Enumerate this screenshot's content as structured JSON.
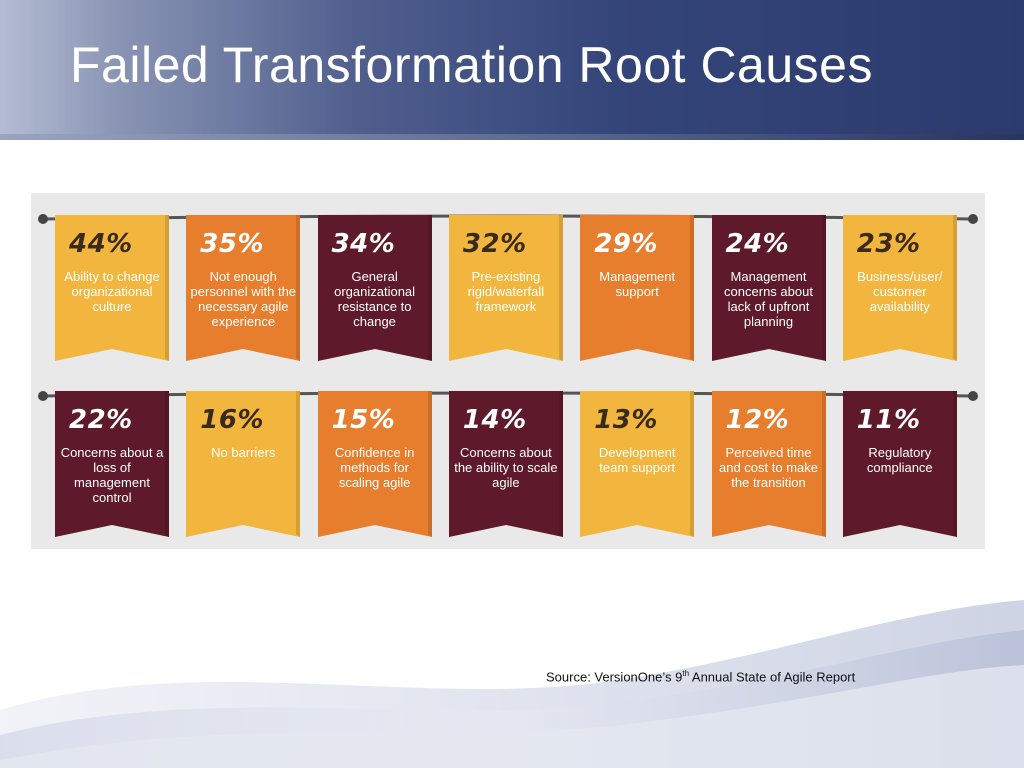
{
  "title": "Failed Transformation Root Causes",
  "source": {
    "prefix": "Source: VersionOne’s 9",
    "superscript": "th",
    "suffix": " Annual State of Agile Report"
  },
  "colors": {
    "yellow": "#f2b63f",
    "orange": "#e67e2e",
    "dark": "#5e1a2a",
    "panel": "#e9e9e9",
    "rope": "#555555"
  },
  "rows": [
    [
      {
        "percent": "44%",
        "label": "Ability to change organizational culture",
        "color": "yellow"
      },
      {
        "percent": "35%",
        "label": "Not enough personnel with the necessary agile experience",
        "color": "orange"
      },
      {
        "percent": "34%",
        "label": "General organizational resistance to change",
        "color": "dark"
      },
      {
        "percent": "32%",
        "label": "Pre-existing rigid/waterfall framework",
        "color": "yellow"
      },
      {
        "percent": "29%",
        "label": "Management support",
        "color": "orange"
      },
      {
        "percent": "24%",
        "label": "Management concerns about lack of upfront planning",
        "color": "dark"
      },
      {
        "percent": "23%",
        "label": "Business/user/ customer availability",
        "color": "yellow"
      }
    ],
    [
      {
        "percent": "22%",
        "label": "Concerns about a loss of management control",
        "color": "dark"
      },
      {
        "percent": "16%",
        "label": "No barriers",
        "color": "yellow"
      },
      {
        "percent": "15%",
        "label": "Confidence in methods for scaling agile",
        "color": "orange"
      },
      {
        "percent": "14%",
        "label": "Concerns about the ability to scale agile",
        "color": "dark"
      },
      {
        "percent": "13%",
        "label": "Development team support",
        "color": "yellow"
      },
      {
        "percent": "12%",
        "label": "Perceived time and cost to make the transition",
        "color": "orange"
      },
      {
        "percent": "11%",
        "label": "Regulatory compliance",
        "color": "dark"
      }
    ]
  ]
}
